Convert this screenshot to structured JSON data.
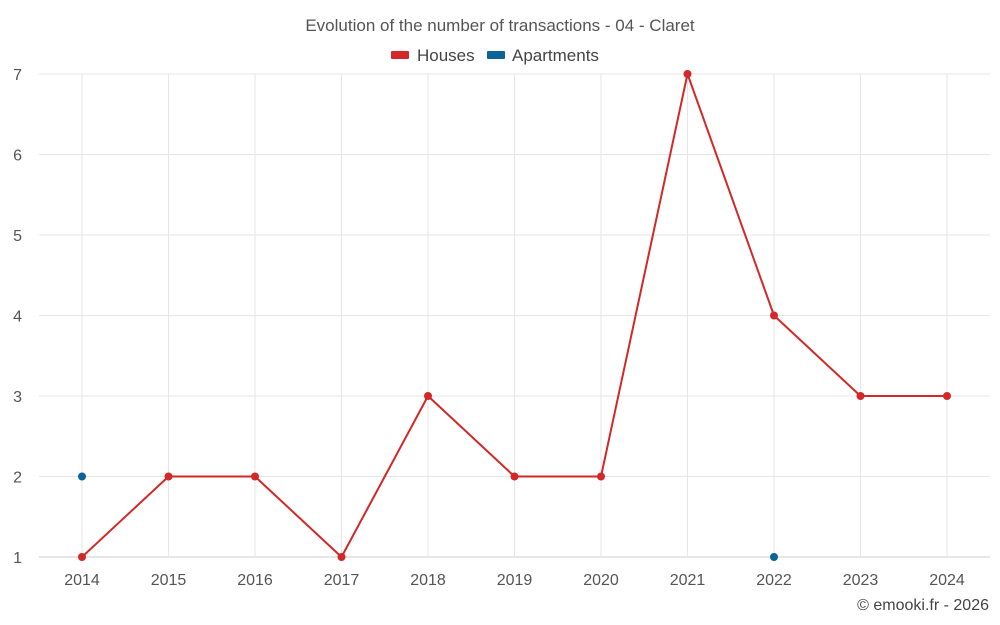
{
  "chart_data": {
    "type": "line",
    "title": "Evolution of the number of transactions - 04 - Claret",
    "categories": [
      "2014",
      "2015",
      "2016",
      "2017",
      "2018",
      "2019",
      "2020",
      "2021",
      "2022",
      "2023",
      "2024"
    ],
    "yticks": [
      "1",
      "2",
      "3",
      "4",
      "5",
      "6",
      "7"
    ],
    "ylim": [
      1,
      7
    ],
    "series": [
      {
        "name": "Houses",
        "color": "#d32828",
        "values": [
          1,
          2,
          2,
          1,
          3,
          2,
          2,
          7,
          4,
          3,
          3
        ],
        "line": true
      },
      {
        "name": "Apartments",
        "color": "#0a6496",
        "values": [
          2,
          null,
          null,
          null,
          null,
          null,
          null,
          null,
          1,
          null,
          null
        ],
        "line": false
      }
    ],
    "legend_position": "top-center",
    "credit": "© emooki.fr - 2026"
  }
}
